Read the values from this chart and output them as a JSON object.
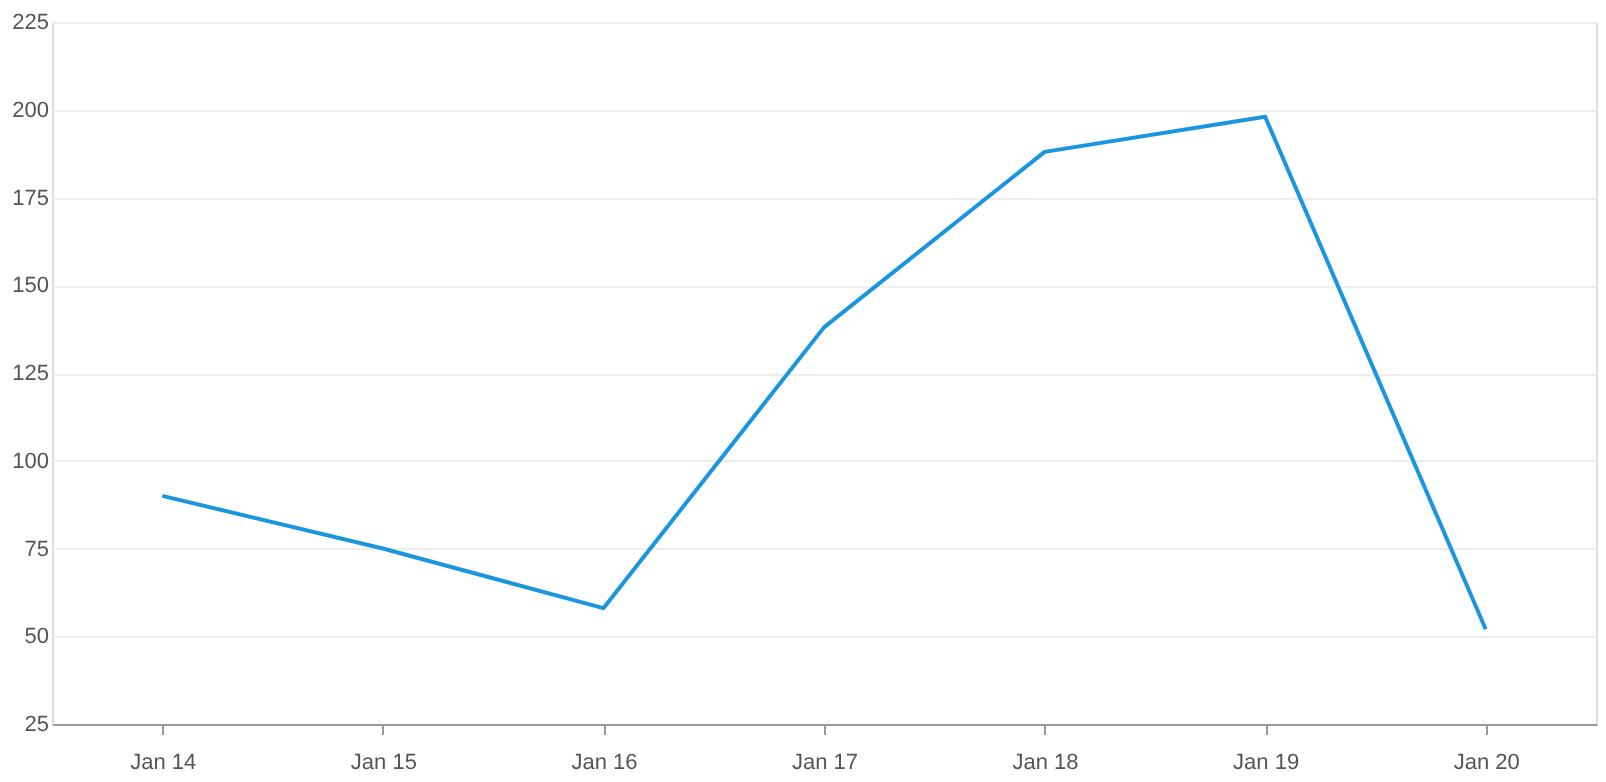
{
  "chart_data": {
    "type": "line",
    "categories": [
      "Jan 14",
      "Jan 15",
      "Jan 16",
      "Jan 17",
      "Jan 18",
      "Jan 19",
      "Jan 20"
    ],
    "series": [
      {
        "color": "#1a96e0",
        "values": [
          90,
          75,
          58,
          138,
          188,
          198,
          52
        ]
      }
    ],
    "ylim": [
      25,
      225
    ],
    "yticks": [
      25,
      50,
      75,
      100,
      125,
      150,
      175,
      200,
      225
    ],
    "grid": "y",
    "legend": false,
    "marker": "none",
    "line_style": "solid"
  }
}
